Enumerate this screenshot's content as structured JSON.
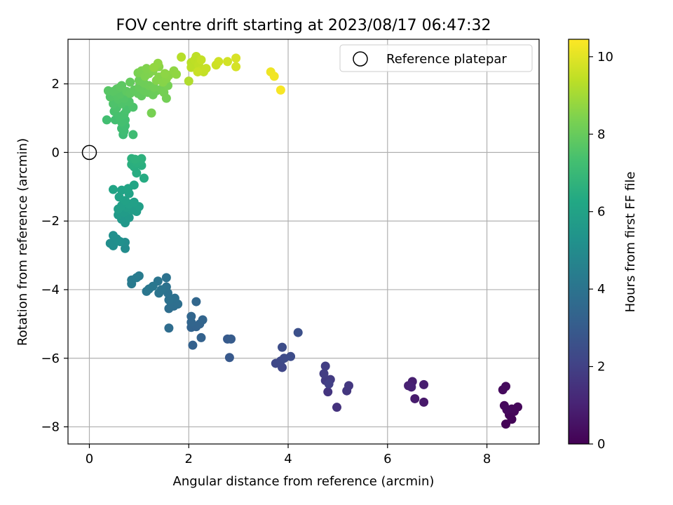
{
  "chart_data": {
    "type": "scatter",
    "title": "FOV centre drift starting at 2023/08/17 06:47:32",
    "xlabel": "Angular distance from reference (arcmin)",
    "ylabel": "Rotation from reference (arcmin)",
    "xlim": [
      -0.43,
      9.05
    ],
    "ylim": [
      -8.5,
      3.3
    ],
    "xticks": [
      0,
      2,
      4,
      6,
      8
    ],
    "yticks": [
      -8,
      -6,
      -4,
      -2,
      0,
      2
    ],
    "grid": true,
    "legend": {
      "position": "top-right",
      "entries": [
        "Reference platepar"
      ]
    },
    "reference_point": {
      "label": "Reference platepar",
      "x": 0,
      "y": 0
    },
    "colorbar": {
      "label": "Hours from first FF file",
      "colormap": "viridis",
      "min": 0,
      "max": 10.45,
      "ticks": [
        0,
        2,
        4,
        6,
        8,
        10
      ]
    },
    "points": [
      {
        "x": 8.38,
        "y": -7.92,
        "hours": 0.05
      },
      {
        "x": 8.5,
        "y": -7.78,
        "hours": 0.1
      },
      {
        "x": 8.45,
        "y": -7.65,
        "hours": 0.12
      },
      {
        "x": 8.55,
        "y": -7.55,
        "hours": 0.15
      },
      {
        "x": 8.62,
        "y": -7.42,
        "hours": 0.18
      },
      {
        "x": 8.5,
        "y": -7.48,
        "hours": 0.2
      },
      {
        "x": 8.35,
        "y": -7.38,
        "hours": 0.22
      },
      {
        "x": 8.4,
        "y": -7.5,
        "hours": 0.25
      },
      {
        "x": 8.32,
        "y": -6.92,
        "hours": 0.28
      },
      {
        "x": 8.38,
        "y": -6.82,
        "hours": 0.3
      },
      {
        "x": 6.73,
        "y": -7.28,
        "hours": 0.7
      },
      {
        "x": 6.55,
        "y": -7.18,
        "hours": 0.8
      },
      {
        "x": 6.73,
        "y": -6.77,
        "hours": 0.85
      },
      {
        "x": 6.5,
        "y": -6.68,
        "hours": 0.9
      },
      {
        "x": 6.42,
        "y": -6.8,
        "hours": 0.95
      },
      {
        "x": 6.48,
        "y": -6.84,
        "hours": 1.0
      },
      {
        "x": 4.98,
        "y": -7.43,
        "hours": 1.5
      },
      {
        "x": 4.8,
        "y": -6.98,
        "hours": 1.6
      },
      {
        "x": 5.18,
        "y": -6.95,
        "hours": 1.65
      },
      {
        "x": 5.22,
        "y": -6.8,
        "hours": 1.7
      },
      {
        "x": 4.75,
        "y": -6.65,
        "hours": 1.75
      },
      {
        "x": 4.85,
        "y": -6.62,
        "hours": 1.8
      },
      {
        "x": 4.72,
        "y": -6.45,
        "hours": 1.85
      },
      {
        "x": 4.75,
        "y": -6.23,
        "hours": 1.9
      },
      {
        "x": 4.82,
        "y": -6.75,
        "hours": 1.95
      },
      {
        "x": 3.88,
        "y": -6.27,
        "hours": 2.2
      },
      {
        "x": 3.75,
        "y": -6.15,
        "hours": 2.25
      },
      {
        "x": 3.85,
        "y": -6.08,
        "hours": 2.3
      },
      {
        "x": 3.92,
        "y": -6.0,
        "hours": 2.35
      },
      {
        "x": 4.05,
        "y": -5.95,
        "hours": 2.4
      },
      {
        "x": 3.88,
        "y": -5.68,
        "hours": 2.45
      },
      {
        "x": 4.2,
        "y": -5.25,
        "hours": 2.55
      },
      {
        "x": 2.82,
        "y": -5.98,
        "hours": 2.9
      },
      {
        "x": 2.78,
        "y": -5.44,
        "hours": 2.95
      },
      {
        "x": 2.85,
        "y": -5.44,
        "hours": 3.0
      },
      {
        "x": 2.08,
        "y": -5.62,
        "hours": 3.2
      },
      {
        "x": 2.25,
        "y": -5.4,
        "hours": 3.25
      },
      {
        "x": 2.05,
        "y": -5.1,
        "hours": 3.3
      },
      {
        "x": 2.15,
        "y": -5.08,
        "hours": 3.32
      },
      {
        "x": 2.22,
        "y": -5.0,
        "hours": 3.35
      },
      {
        "x": 2.28,
        "y": -4.88,
        "hours": 3.38
      },
      {
        "x": 2.05,
        "y": -4.95,
        "hours": 3.4
      },
      {
        "x": 2.05,
        "y": -4.78,
        "hours": 3.42
      },
      {
        "x": 2.15,
        "y": -4.35,
        "hours": 3.45
      },
      {
        "x": 1.6,
        "y": -5.12,
        "hours": 3.7
      },
      {
        "x": 1.6,
        "y": -4.55,
        "hours": 3.75
      },
      {
        "x": 1.7,
        "y": -4.48,
        "hours": 3.78
      },
      {
        "x": 1.65,
        "y": -4.4,
        "hours": 3.8
      },
      {
        "x": 1.78,
        "y": -4.42,
        "hours": 3.82
      },
      {
        "x": 1.72,
        "y": -4.25,
        "hours": 3.85
      },
      {
        "x": 1.6,
        "y": -4.3,
        "hours": 3.88
      },
      {
        "x": 1.58,
        "y": -4.1,
        "hours": 3.9
      },
      {
        "x": 1.55,
        "y": -3.92,
        "hours": 3.92
      },
      {
        "x": 1.55,
        "y": -3.65,
        "hours": 3.95
      },
      {
        "x": 1.4,
        "y": -4.1,
        "hours": 4.0
      },
      {
        "x": 1.45,
        "y": -4.0,
        "hours": 4.02
      },
      {
        "x": 1.38,
        "y": -3.75,
        "hours": 4.05
      },
      {
        "x": 1.15,
        "y": -4.05,
        "hours": 4.1
      },
      {
        "x": 1.2,
        "y": -3.98,
        "hours": 4.12
      },
      {
        "x": 1.28,
        "y": -3.9,
        "hours": 4.15
      },
      {
        "x": 0.85,
        "y": -3.83,
        "hours": 4.25
      },
      {
        "x": 0.85,
        "y": -3.72,
        "hours": 4.28
      },
      {
        "x": 0.95,
        "y": -3.65,
        "hours": 4.3
      },
      {
        "x": 1.0,
        "y": -3.6,
        "hours": 4.32
      },
      {
        "x": 0.72,
        "y": -2.8,
        "hours": 5.0
      },
      {
        "x": 0.72,
        "y": -2.62,
        "hours": 5.05
      },
      {
        "x": 0.48,
        "y": -2.72,
        "hours": 5.1
      },
      {
        "x": 0.42,
        "y": -2.65,
        "hours": 5.12
      },
      {
        "x": 0.55,
        "y": -2.52,
        "hours": 5.15
      },
      {
        "x": 0.48,
        "y": -2.42,
        "hours": 5.18
      },
      {
        "x": 0.62,
        "y": -2.6,
        "hours": 5.2
      },
      {
        "x": 0.72,
        "y": -2.05,
        "hours": 5.5
      },
      {
        "x": 0.65,
        "y": -1.95,
        "hours": 5.55
      },
      {
        "x": 0.8,
        "y": -1.9,
        "hours": 5.6
      },
      {
        "x": 0.58,
        "y": -1.82,
        "hours": 5.65
      },
      {
        "x": 0.7,
        "y": -1.75,
        "hours": 5.7
      },
      {
        "x": 0.95,
        "y": -1.72,
        "hours": 5.75
      },
      {
        "x": 0.85,
        "y": -1.68,
        "hours": 5.78
      },
      {
        "x": 0.58,
        "y": -1.65,
        "hours": 5.8
      },
      {
        "x": 0.75,
        "y": -1.6,
        "hours": 5.82
      },
      {
        "x": 1.0,
        "y": -1.58,
        "hours": 5.85
      },
      {
        "x": 0.65,
        "y": -1.55,
        "hours": 5.88
      },
      {
        "x": 0.8,
        "y": -1.5,
        "hours": 5.9
      },
      {
        "x": 0.9,
        "y": -1.45,
        "hours": 5.92
      },
      {
        "x": 0.72,
        "y": -1.4,
        "hours": 5.95
      },
      {
        "x": 0.6,
        "y": -1.3,
        "hours": 6.0
      },
      {
        "x": 0.8,
        "y": -1.2,
        "hours": 6.02
      },
      {
        "x": 0.65,
        "y": -1.1,
        "hours": 6.05
      },
      {
        "x": 0.48,
        "y": -1.08,
        "hours": 6.08
      },
      {
        "x": 0.78,
        "y": -1.05,
        "hours": 6.1
      },
      {
        "x": 0.9,
        "y": -0.95,
        "hours": 6.12
      },
      {
        "x": 1.1,
        "y": -0.75,
        "hours": 6.4
      },
      {
        "x": 0.95,
        "y": -0.6,
        "hours": 6.45
      },
      {
        "x": 0.9,
        "y": -0.42,
        "hours": 6.5
      },
      {
        "x": 1.05,
        "y": -0.38,
        "hours": 6.52
      },
      {
        "x": 0.85,
        "y": -0.35,
        "hours": 6.55
      },
      {
        "x": 0.95,
        "y": -0.3,
        "hours": 6.58
      },
      {
        "x": 1.02,
        "y": -0.25,
        "hours": 6.6
      },
      {
        "x": 0.85,
        "y": -0.18,
        "hours": 6.62
      },
      {
        "x": 1.05,
        "y": -0.18,
        "hours": 6.65
      },
      {
        "x": 0.92,
        "y": -0.2,
        "hours": 6.68
      },
      {
        "x": 0.68,
        "y": 0.52,
        "hours": 7.1
      },
      {
        "x": 0.88,
        "y": 0.52,
        "hours": 7.15
      },
      {
        "x": 0.7,
        "y": 0.62,
        "hours": 7.18
      },
      {
        "x": 0.65,
        "y": 0.7,
        "hours": 7.2
      },
      {
        "x": 0.72,
        "y": 0.78,
        "hours": 7.22
      },
      {
        "x": 0.35,
        "y": 0.95,
        "hours": 7.25
      },
      {
        "x": 0.52,
        "y": 0.95,
        "hours": 7.28
      },
      {
        "x": 0.65,
        "y": 0.88,
        "hours": 7.3
      },
      {
        "x": 0.72,
        "y": 0.95,
        "hours": 7.32
      },
      {
        "x": 0.6,
        "y": 1.05,
        "hours": 7.35
      },
      {
        "x": 0.7,
        "y": 1.12,
        "hours": 7.38
      },
      {
        "x": 0.5,
        "y": 1.2,
        "hours": 7.4
      },
      {
        "x": 0.75,
        "y": 1.25,
        "hours": 7.42
      },
      {
        "x": 0.55,
        "y": 1.3,
        "hours": 7.45
      },
      {
        "x": 0.88,
        "y": 1.32,
        "hours": 7.48
      },
      {
        "x": 0.48,
        "y": 1.42,
        "hours": 7.5
      },
      {
        "x": 0.65,
        "y": 1.42,
        "hours": 7.52
      },
      {
        "x": 0.8,
        "y": 1.48,
        "hours": 7.55
      },
      {
        "x": 0.58,
        "y": 1.55,
        "hours": 7.58
      },
      {
        "x": 0.7,
        "y": 1.58,
        "hours": 7.6
      },
      {
        "x": 0.42,
        "y": 1.62,
        "hours": 7.62
      },
      {
        "x": 0.55,
        "y": 1.65,
        "hours": 7.65
      },
      {
        "x": 0.62,
        "y": 1.7,
        "hours": 7.68
      },
      {
        "x": 0.38,
        "y": 1.8,
        "hours": 7.7
      },
      {
        "x": 0.48,
        "y": 1.78,
        "hours": 7.72
      },
      {
        "x": 0.55,
        "y": 1.85,
        "hours": 7.75
      },
      {
        "x": 0.62,
        "y": 1.9,
        "hours": 7.78
      },
      {
        "x": 0.65,
        "y": 1.95,
        "hours": 7.8
      },
      {
        "x": 0.75,
        "y": 1.78,
        "hours": 7.82
      },
      {
        "x": 0.82,
        "y": 1.72,
        "hours": 7.85
      },
      {
        "x": 0.9,
        "y": 1.82,
        "hours": 7.88
      },
      {
        "x": 0.98,
        "y": 1.72,
        "hours": 7.9
      },
      {
        "x": 1.05,
        "y": 1.65,
        "hours": 7.92
      },
      {
        "x": 0.82,
        "y": 2.05,
        "hours": 7.95
      },
      {
        "x": 1.0,
        "y": 1.9,
        "hours": 7.98
      },
      {
        "x": 1.1,
        "y": 1.8,
        "hours": 8.0
      },
      {
        "x": 1.18,
        "y": 1.75,
        "hours": 8.02
      },
      {
        "x": 1.28,
        "y": 1.68,
        "hours": 8.05
      },
      {
        "x": 1.35,
        "y": 1.8,
        "hours": 8.08
      },
      {
        "x": 1.0,
        "y": 2.1,
        "hours": 8.1
      },
      {
        "x": 1.1,
        "y": 2.02,
        "hours": 8.12
      },
      {
        "x": 1.2,
        "y": 1.95,
        "hours": 8.15
      },
      {
        "x": 1.3,
        "y": 1.9,
        "hours": 8.18
      },
      {
        "x": 1.45,
        "y": 1.85,
        "hours": 8.2
      },
      {
        "x": 1.55,
        "y": 1.58,
        "hours": 8.22
      },
      {
        "x": 1.5,
        "y": 1.75,
        "hours": 8.25
      },
      {
        "x": 1.58,
        "y": 1.95,
        "hours": 8.28
      },
      {
        "x": 1.25,
        "y": 1.15,
        "hours": 8.3
      },
      {
        "x": 0.98,
        "y": 2.32,
        "hours": 8.35
      },
      {
        "x": 1.05,
        "y": 2.38,
        "hours": 8.38
      },
      {
        "x": 1.12,
        "y": 2.22,
        "hours": 8.4
      },
      {
        "x": 1.2,
        "y": 2.3,
        "hours": 8.42
      },
      {
        "x": 1.15,
        "y": 2.45,
        "hours": 8.45
      },
      {
        "x": 1.28,
        "y": 2.38,
        "hours": 8.48
      },
      {
        "x": 1.35,
        "y": 2.1,
        "hours": 8.5
      },
      {
        "x": 1.4,
        "y": 2.2,
        "hours": 8.52
      },
      {
        "x": 1.48,
        "y": 2.05,
        "hours": 8.55
      },
      {
        "x": 1.55,
        "y": 2.15,
        "hours": 8.58
      },
      {
        "x": 1.4,
        "y": 2.5,
        "hours": 8.6
      },
      {
        "x": 1.6,
        "y": 2.25,
        "hours": 8.62
      },
      {
        "x": 1.52,
        "y": 2.3,
        "hours": 8.65
      },
      {
        "x": 1.7,
        "y": 2.38,
        "hours": 8.68
      },
      {
        "x": 1.75,
        "y": 2.28,
        "hours": 8.7
      },
      {
        "x": 1.38,
        "y": 2.6,
        "hours": 8.72
      },
      {
        "x": 1.3,
        "y": 2.48,
        "hours": 8.75
      },
      {
        "x": 2.0,
        "y": 2.08,
        "hours": 9.2
      },
      {
        "x": 1.85,
        "y": 2.78,
        "hours": 9.3
      },
      {
        "x": 2.05,
        "y": 2.62,
        "hours": 9.35
      },
      {
        "x": 2.05,
        "y": 2.48,
        "hours": 9.38
      },
      {
        "x": 2.12,
        "y": 2.7,
        "hours": 9.4
      },
      {
        "x": 2.15,
        "y": 2.8,
        "hours": 9.42
      },
      {
        "x": 2.2,
        "y": 2.55,
        "hours": 9.45
      },
      {
        "x": 2.25,
        "y": 2.4,
        "hours": 9.48
      },
      {
        "x": 2.3,
        "y": 2.35,
        "hours": 9.5
      },
      {
        "x": 2.25,
        "y": 2.7,
        "hours": 9.52
      },
      {
        "x": 2.35,
        "y": 2.45,
        "hours": 9.55
      },
      {
        "x": 2.18,
        "y": 2.35,
        "hours": 9.58
      },
      {
        "x": 2.55,
        "y": 2.55,
        "hours": 9.65
      },
      {
        "x": 2.6,
        "y": 2.65,
        "hours": 9.7
      },
      {
        "x": 2.78,
        "y": 2.65,
        "hours": 9.75
      },
      {
        "x": 2.95,
        "y": 2.5,
        "hours": 9.8
      },
      {
        "x": 2.95,
        "y": 2.75,
        "hours": 9.85
      },
      {
        "x": 3.65,
        "y": 2.35,
        "hours": 10.2
      },
      {
        "x": 3.72,
        "y": 2.22,
        "hours": 10.25
      },
      {
        "x": 3.85,
        "y": 1.82,
        "hours": 10.35
      }
    ]
  }
}
